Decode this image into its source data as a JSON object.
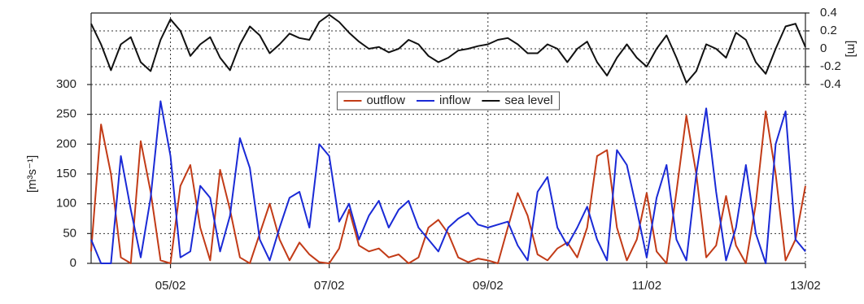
{
  "chart_data": {
    "type": "line",
    "ylabel": "[m³s⁻¹]",
    "y2label": "[m]",
    "x": [
      0,
      0.125,
      0.25,
      0.375,
      0.5,
      0.625,
      0.75,
      0.875,
      1,
      1.125,
      1.25,
      1.375,
      1.5,
      1.625,
      1.75,
      1.875,
      2,
      2.125,
      2.25,
      2.375,
      2.5,
      2.625,
      2.75,
      2.875,
      3,
      3.125,
      3.25,
      3.375,
      3.5,
      3.625,
      3.75,
      3.875,
      4,
      4.125,
      4.25,
      4.375,
      4.5,
      4.625,
      4.75,
      4.875,
      5,
      5.125,
      5.25,
      5.375,
      5.5,
      5.625,
      5.75,
      5.875,
      6,
      6.125,
      6.25,
      6.375,
      6.5,
      6.625,
      6.75,
      6.875,
      7,
      7.125,
      7.25,
      7.375,
      7.5,
      7.625,
      7.75,
      7.875,
      8,
      8.125,
      8.25,
      8.375,
      8.5,
      8.625,
      8.75,
      8.875,
      9
    ],
    "xlim": [
      0,
      9
    ],
    "xticks": [
      {
        "value": 1,
        "label": "05/02"
      },
      {
        "value": 3,
        "label": "07/02"
      },
      {
        "value": 5,
        "label": "09/02"
      },
      {
        "value": 7,
        "label": "11/02"
      },
      {
        "value": 9,
        "label": "13/02"
      }
    ],
    "ylim": [
      0,
      420
    ],
    "yticks": [
      0,
      50,
      100,
      150,
      200,
      250,
      300
    ],
    "y2lim": [
      -2.4,
      0.4
    ],
    "y2ticks": [
      -0.4,
      -0.2,
      0,
      0.2,
      0.4
    ],
    "grid": true,
    "legend": "top center",
    "series": [
      {
        "name": "outflow",
        "color": "#c23b17",
        "values": [
          20,
          233,
          150,
          10,
          0,
          205,
          120,
          5,
          0,
          130,
          165,
          60,
          5,
          157,
          90,
          10,
          0,
          50,
          100,
          40,
          5,
          35,
          15,
          2,
          0,
          25,
          90,
          30,
          20,
          25,
          10,
          15,
          0,
          10,
          60,
          73,
          50,
          10,
          2,
          8,
          5,
          0,
          60,
          118,
          80,
          15,
          5,
          25,
          35,
          10,
          60,
          180,
          190,
          60,
          5,
          40,
          118,
          20,
          0,
          120,
          248,
          150,
          10,
          30,
          113,
          30,
          0,
          100,
          255,
          150,
          5,
          40,
          130
        ]
      },
      {
        "name": "inflow",
        "color": "#1a2ad6",
        "values": [
          40,
          0,
          0,
          180,
          90,
          10,
          110,
          272,
          180,
          10,
          20,
          130,
          110,
          20,
          80,
          210,
          160,
          40,
          5,
          60,
          110,
          120,
          60,
          200,
          180,
          70,
          100,
          40,
          80,
          105,
          60,
          90,
          105,
          60,
          40,
          20,
          60,
          75,
          85,
          65,
          60,
          65,
          70,
          30,
          5,
          120,
          145,
          60,
          30,
          60,
          95,
          40,
          5,
          190,
          165,
          90,
          10,
          110,
          165,
          40,
          5,
          150,
          260,
          120,
          5,
          60,
          165,
          50,
          0,
          200,
          255,
          40,
          20
        ]
      },
      {
        "name": "sea level",
        "color": "#111111",
        "axis": "y2",
        "values": [
          0.28,
          0.05,
          -0.24,
          0.05,
          0.13,
          -0.15,
          -0.25,
          0.1,
          0.33,
          0.2,
          -0.08,
          0.05,
          0.13,
          -0.1,
          -0.24,
          0.05,
          0.25,
          0.15,
          -0.05,
          0.05,
          0.17,
          0.12,
          0.1,
          0.3,
          0.38,
          0.3,
          0.18,
          0.08,
          0,
          0.02,
          -0.04,
          0,
          0.1,
          0.05,
          -0.08,
          -0.15,
          -0.1,
          -0.02,
          0,
          0.03,
          0.05,
          0.1,
          0.12,
          0.05,
          -0.05,
          -0.05,
          0.05,
          0,
          -0.15,
          0,
          0.08,
          -0.15,
          -0.3,
          -0.1,
          0.05,
          -0.1,
          -0.2,
          0,
          0.15,
          -0.1,
          -0.38,
          -0.25,
          0.05,
          0,
          -0.1,
          0.18,
          0.1,
          -0.15,
          -0.28,
          0,
          0.25,
          0.28,
          0.02
        ]
      }
    ]
  }
}
